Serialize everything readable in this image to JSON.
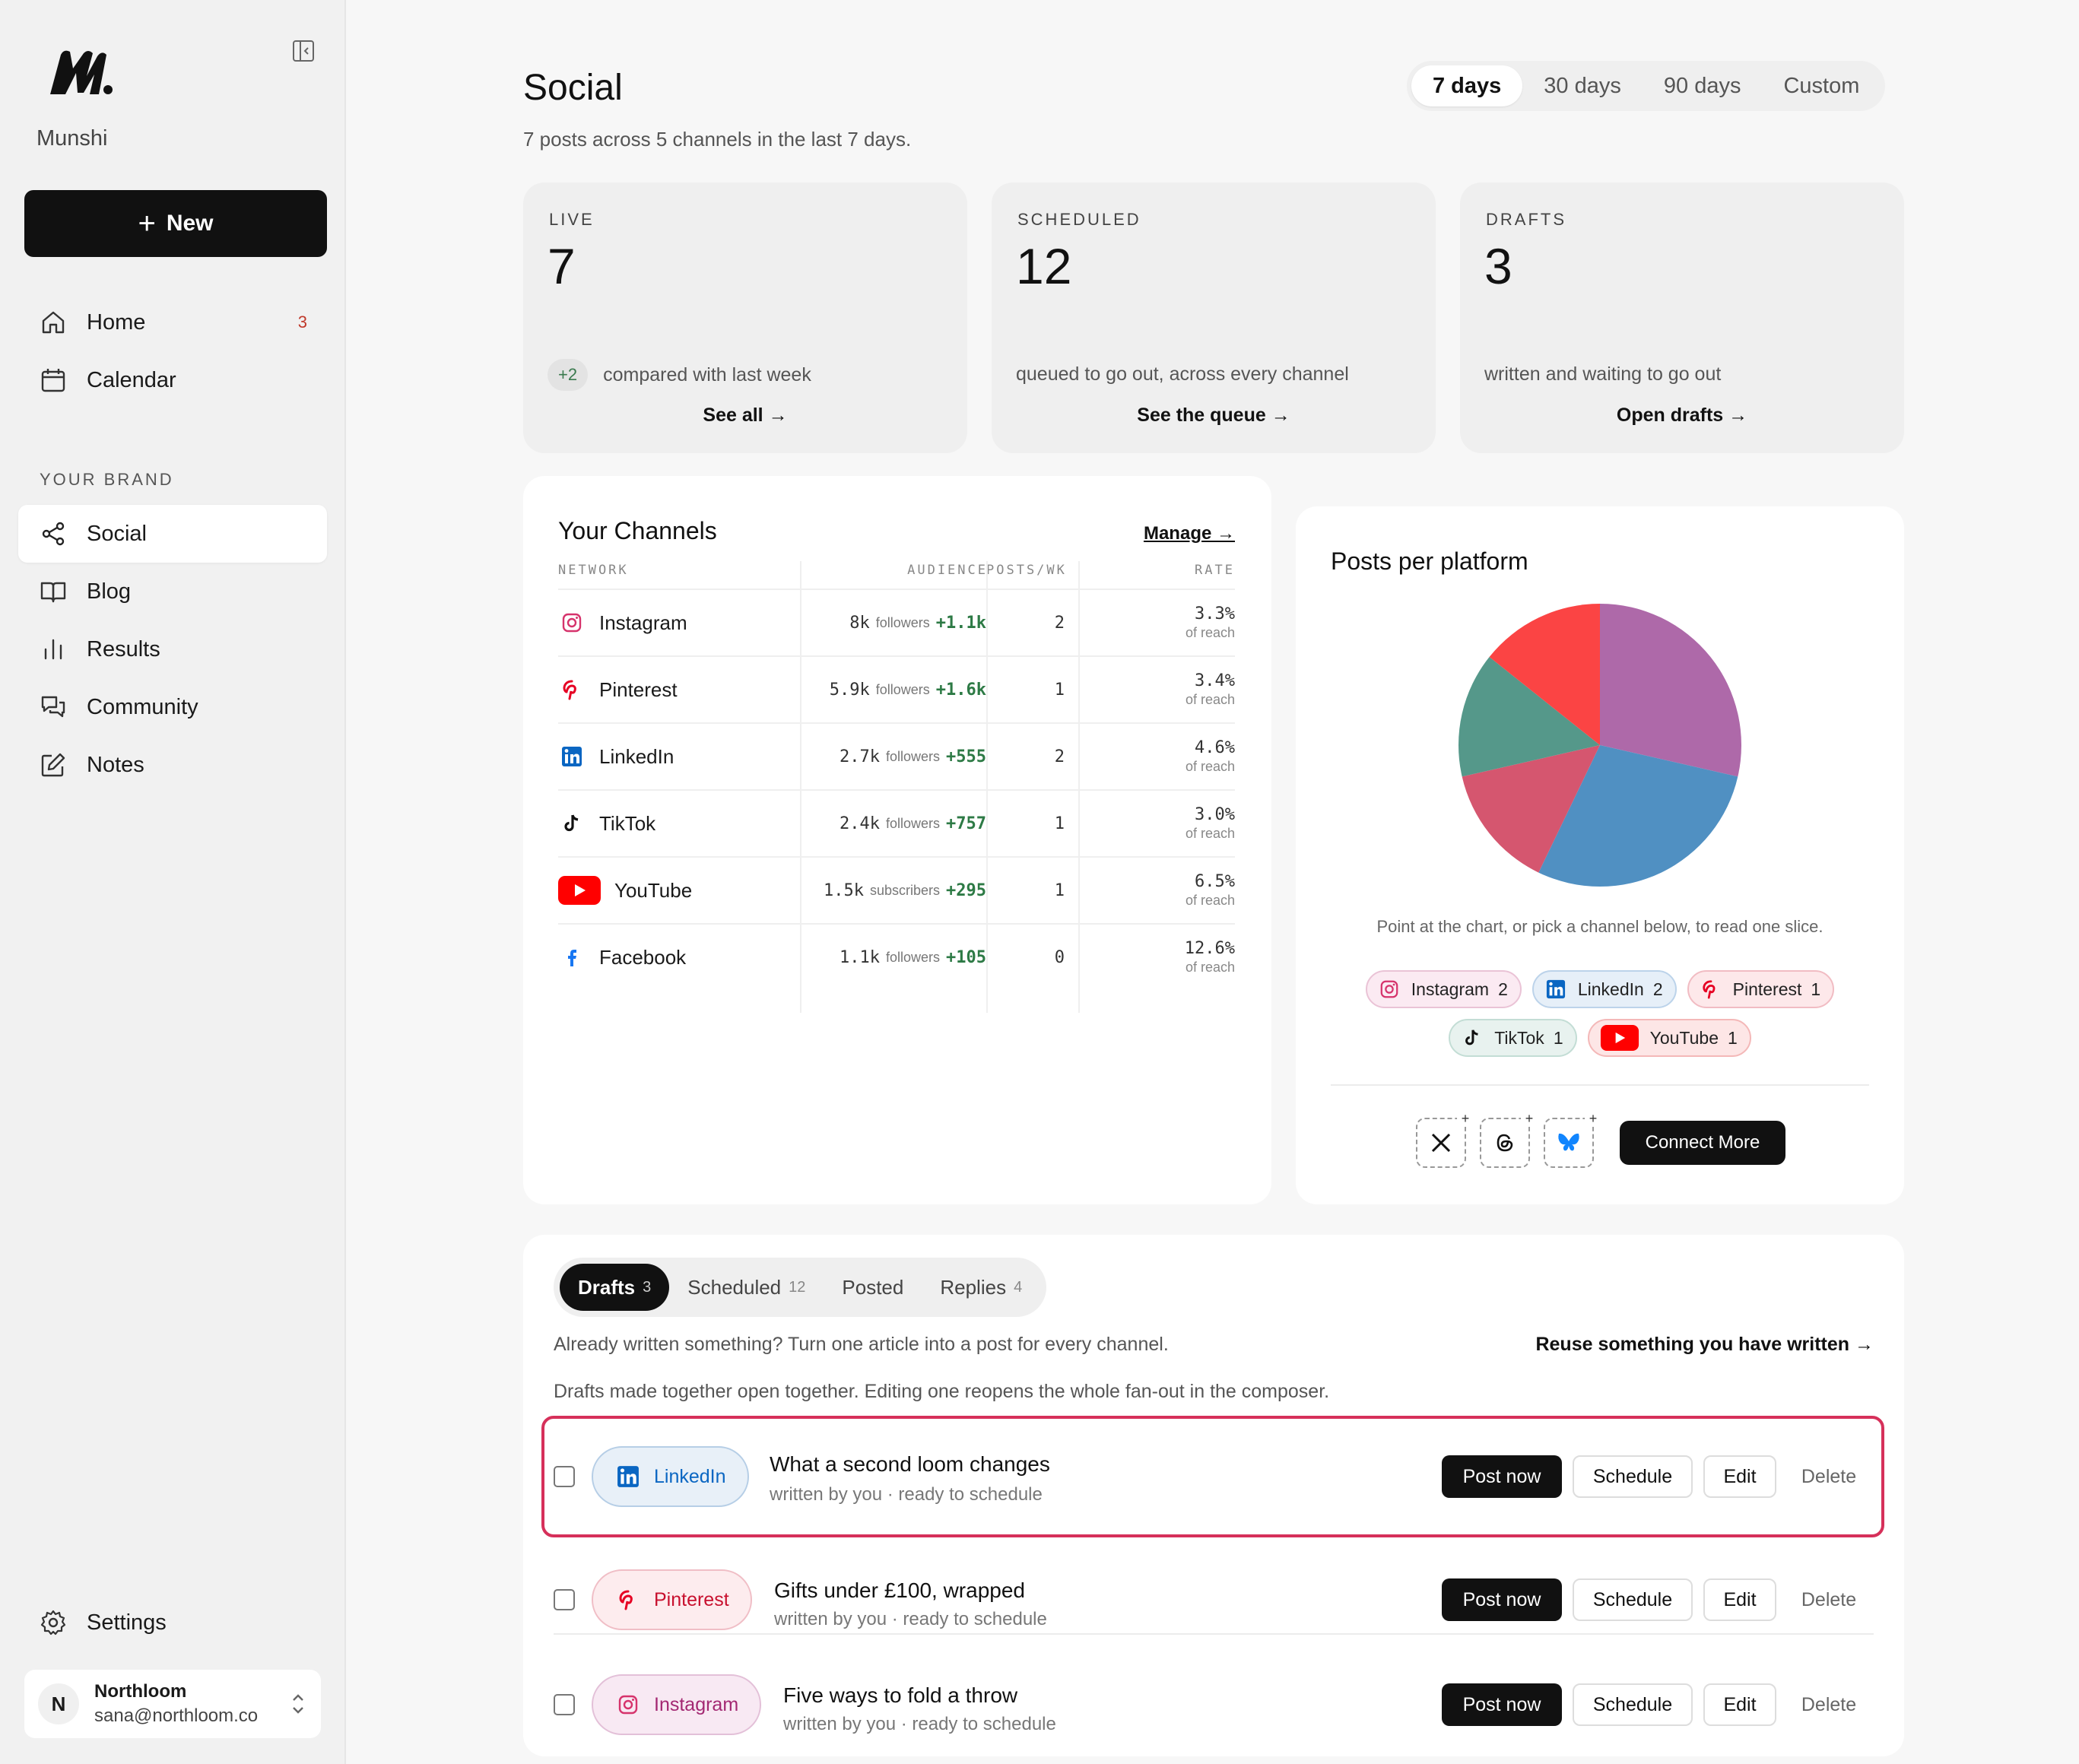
{
  "sidebar": {
    "brand": "Munshi",
    "new_label": "New",
    "nav_top": [
      {
        "label": "Home",
        "badge": "3"
      },
      {
        "label": "Calendar"
      }
    ],
    "section_label": "YOUR BRAND",
    "nav_brand": [
      {
        "label": "Social",
        "active": true
      },
      {
        "label": "Blog"
      },
      {
        "label": "Results"
      },
      {
        "label": "Community"
      },
      {
        "label": "Notes"
      }
    ],
    "settings_label": "Settings",
    "account": {
      "initial": "N",
      "name": "Northloom",
      "email": "sana@northloom.co"
    }
  },
  "header": {
    "title": "Social",
    "subtitle": "7 posts across 5 channels in the last 7 days.",
    "ranges": [
      "7 days",
      "30 days",
      "90 days",
      "Custom"
    ],
    "active_range": "7 days"
  },
  "stats": [
    {
      "label": "LIVE",
      "value": "7",
      "delta": "+2",
      "desc": "compared with last week",
      "link": "See all →"
    },
    {
      "label": "SCHEDULED",
      "value": "12",
      "desc": "queued to go out, across every channel",
      "link": "See the queue →"
    },
    {
      "label": "DRAFTS",
      "value": "3",
      "desc": "written and waiting to go out",
      "link": "Open drafts →"
    }
  ],
  "channels": {
    "title": "Your Channels",
    "manage": "Manage →",
    "headers": {
      "network": "NETWORK",
      "audience": "AUDIENCE",
      "posts": "POSTS/WK",
      "rate": "RATE"
    },
    "rows": [
      {
        "network": "Instagram",
        "audience": "8k",
        "unit": "followers",
        "growth": "+1.1k",
        "posts": "2",
        "rate": "3.3%",
        "rate_sub": "of reach"
      },
      {
        "network": "Pinterest",
        "audience": "5.9k",
        "unit": "followers",
        "growth": "+1.6k",
        "posts": "1",
        "rate": "3.4%",
        "rate_sub": "of reach"
      },
      {
        "network": "LinkedIn",
        "audience": "2.7k",
        "unit": "followers",
        "growth": "+555",
        "posts": "2",
        "rate": "4.6%",
        "rate_sub": "of reach"
      },
      {
        "network": "TikTok",
        "audience": "2.4k",
        "unit": "followers",
        "growth": "+757",
        "posts": "1",
        "rate": "3.0%",
        "rate_sub": "of reach"
      },
      {
        "network": "YouTube",
        "audience": "1.5k",
        "unit": "subscribers",
        "growth": "+295",
        "posts": "1",
        "rate": "6.5%",
        "rate_sub": "of reach"
      },
      {
        "network": "Facebook",
        "audience": "1.1k",
        "unit": "followers",
        "growth": "+105",
        "posts": "0",
        "rate": "12.6%",
        "rate_sub": "of reach"
      }
    ]
  },
  "posts_per_platform": {
    "title": "Posts per platform",
    "hint": "Point at the chart, or pick a channel below, to read one slice.",
    "connect_label": "Connect More",
    "connect_icons": [
      "x-icon",
      "threads-icon",
      "bluesky-icon"
    ]
  },
  "chart_data": {
    "type": "pie",
    "title": "Posts per platform",
    "categories": [
      "Instagram",
      "LinkedIn",
      "Pinterest",
      "TikTok",
      "YouTube"
    ],
    "values": [
      2,
      2,
      1,
      1,
      1
    ],
    "colors": [
      "#ae69a9",
      "#5090c2",
      "#d5566f",
      "#55988a",
      "#fb4444"
    ]
  },
  "drafts": {
    "tabs": [
      {
        "label": "Drafts",
        "count": "3",
        "active": true
      },
      {
        "label": "Scheduled",
        "count": "12"
      },
      {
        "label": "Posted",
        "count": ""
      },
      {
        "label": "Replies",
        "count": "4"
      }
    ],
    "intro": "Already written something? Turn one article into a post for every channel.",
    "reuse": "Reuse something you have written →",
    "note": "Drafts made together open together. Editing one reopens the whole fan-out in the composer.",
    "actions": {
      "post_now": "Post now",
      "schedule": "Schedule",
      "edit": "Edit",
      "delete": "Delete"
    },
    "items": [
      {
        "channel": "LinkedIn",
        "title": "What a second loom changes",
        "meta": "written by you · ready to schedule",
        "highlighted": true
      },
      {
        "channel": "Pinterest",
        "title": "Gifts under £100, wrapped",
        "meta": "written by you · ready to schedule"
      },
      {
        "channel": "Instagram",
        "title": "Five ways to fold a throw",
        "meta": "written by you · ready to schedule"
      }
    ]
  },
  "colors": {
    "accent": "#111111",
    "highlight_border": "#d6305a",
    "growth": "#2d7a45",
    "badge": "#c0392b"
  }
}
